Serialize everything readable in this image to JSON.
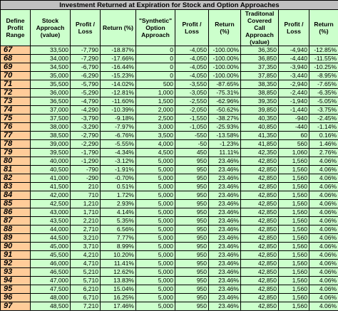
{
  "title": "Investment Returned at Expiration for Stock and Option Approaches",
  "columns": [
    "Define Profit Range",
    "Stock Approach (value)",
    "Profit / Loss",
    "Return (%)",
    "\"Synthetic\" Option Approach",
    "Profit / Loss",
    "Return (%)",
    "Traditonal Covered Call Approach (value)",
    "Profit / Loss",
    "Return (%)"
  ],
  "table": {
    "rows": [
      [
        "67",
        "33,500",
        "-7,790",
        "-18.87%",
        "0",
        "-4,050",
        "-100.00%",
        "36,350",
        "-4,940",
        "-12.85%"
      ],
      [
        "68",
        "34,000",
        "-7,290",
        "-17.66%",
        "0",
        "-4,050",
        "-100.00%",
        "36,850",
        "-4,440",
        "-11.55%"
      ],
      [
        "69",
        "34,500",
        "-6,790",
        "-16.44%",
        "0",
        "-4,050",
        "-100.00%",
        "37,350",
        "-3,940",
        "-10.25%"
      ],
      [
        "70",
        "35,000",
        "-6,290",
        "-15.23%",
        "0",
        "-4,050",
        "-100.00%",
        "37,850",
        "-3,440",
        "-8.95%"
      ],
      [
        "71",
        "35,500",
        "-5,790",
        "-14.02%",
        "500",
        "-3,550",
        "-87.65%",
        "38,350",
        "-2,940",
        "-7.65%"
      ],
      [
        "72",
        "36,000",
        "-5,290",
        "-12.81%",
        "1,000",
        "-3,050",
        "-75.31%",
        "38,850",
        "-2,440",
        "-6.35%"
      ],
      [
        "73",
        "36,500",
        "-4,790",
        "-11.60%",
        "1,500",
        "-2,550",
        "-62.96%",
        "39,350",
        "-1,940",
        "-5.05%"
      ],
      [
        "74",
        "37,000",
        "-4,290",
        "-10.39%",
        "2,000",
        "-2,050",
        "-50.62%",
        "39,850",
        "-1,440",
        "-3.75%"
      ],
      [
        "75",
        "37,500",
        "-3,790",
        "-9.18%",
        "2,500",
        "-1,550",
        "-38.27%",
        "40,350",
        "-940",
        "-2.45%"
      ],
      [
        "76",
        "38,000",
        "-3,290",
        "-7.97%",
        "3,000",
        "-1,050",
        "-25.93%",
        "40,850",
        "-440",
        "-1.14%"
      ],
      [
        "77",
        "38,500",
        "-2,790",
        "-6.76%",
        "3,500",
        "-550",
        "-13.58%",
        "41,350",
        "60",
        "0.16%"
      ],
      [
        "78",
        "39,000",
        "-2,290",
        "-5.55%",
        "4,000",
        "-50",
        "-1.23%",
        "41,850",
        "560",
        "1.46%"
      ],
      [
        "79",
        "39,500",
        "-1,790",
        "-4.34%",
        "4,500",
        "450",
        "11.11%",
        "42,350",
        "1,060",
        "2.76%"
      ],
      [
        "80",
        "40,000",
        "-1,290",
        "-3.12%",
        "5,000",
        "950",
        "23.46%",
        "42,850",
        "1,560",
        "4.06%"
      ],
      [
        "81",
        "40,500",
        "-790",
        "-1.91%",
        "5,000",
        "950",
        "23.46%",
        "42,850",
        "1,560",
        "4.06%"
      ],
      [
        "82",
        "41,000",
        "-290",
        "-0.70%",
        "5,000",
        "950",
        "23.46%",
        "42,850",
        "1,560",
        "4.06%"
      ],
      [
        "83",
        "41,500",
        "210",
        "0.51%",
        "5,000",
        "950",
        "23.46%",
        "42,850",
        "1,560",
        "4.06%"
      ],
      [
        "84",
        "42,000",
        "710",
        "1.72%",
        "5,000",
        "950",
        "23.46%",
        "42,850",
        "1,560",
        "4.06%"
      ],
      [
        "85",
        "42,500",
        "1,210",
        "2.93%",
        "5,000",
        "950",
        "23.46%",
        "42,850",
        "1,560",
        "4.06%"
      ],
      [
        "86",
        "43,000",
        "1,710",
        "4.14%",
        "5,000",
        "950",
        "23.46%",
        "42,850",
        "1,560",
        "4.06%"
      ],
      [
        "87",
        "43,500",
        "2,210",
        "5.35%",
        "5,000",
        "950",
        "23.46%",
        "42,850",
        "1,560",
        "4.06%"
      ],
      [
        "88",
        "44,000",
        "2,710",
        "6.56%",
        "5,000",
        "950",
        "23.46%",
        "42,850",
        "1,560",
        "4.06%"
      ],
      [
        "89",
        "44,500",
        "3,210",
        "7.77%",
        "5,000",
        "950",
        "23.46%",
        "42,850",
        "1,560",
        "4.06%"
      ],
      [
        "90",
        "45,000",
        "3,710",
        "8.99%",
        "5,000",
        "950",
        "23.46%",
        "42,850",
        "1,560",
        "4.06%"
      ],
      [
        "91",
        "45,500",
        "4,210",
        "10.20%",
        "5,000",
        "950",
        "23.46%",
        "42,850",
        "1,560",
        "4.06%"
      ],
      [
        "92",
        "46,000",
        "4,710",
        "11.41%",
        "5,000",
        "950",
        "23.46%",
        "42,850",
        "1,560",
        "4.06%"
      ],
      [
        "93",
        "46,500",
        "5,210",
        "12.62%",
        "5,000",
        "950",
        "23.46%",
        "42,850",
        "1,560",
        "4.06%"
      ],
      [
        "94",
        "47,000",
        "5,710",
        "13.83%",
        "5,000",
        "950",
        "23.46%",
        "42,850",
        "1,560",
        "4.06%"
      ],
      [
        "95",
        "47,500",
        "6,210",
        "15.04%",
        "5,000",
        "950",
        "23.46%",
        "42,850",
        "1,560",
        "4.06%"
      ],
      [
        "96",
        "48,000",
        "6,710",
        "16.25%",
        "5,000",
        "950",
        "23.46%",
        "42,850",
        "1,560",
        "4.06%"
      ],
      [
        "97",
        "48,500",
        "7,210",
        "17.46%",
        "5,000",
        "950",
        "23.46%",
        "42,850",
        "1,560",
        "4.06%"
      ]
    ]
  }
}
